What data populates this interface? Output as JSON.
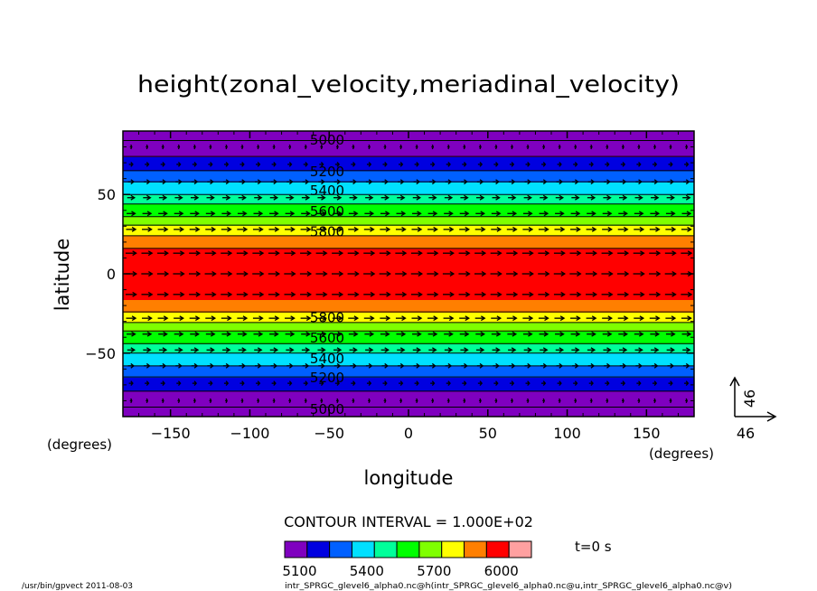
{
  "chart_data": {
    "type": "contour",
    "title": "height(zonal_velocity,meriadinal_velocity)",
    "xlabel": "longitude",
    "ylabel": "latitude",
    "xunit": "(degrees)",
    "yunit": "(degrees)",
    "xlim": [
      -180,
      180
    ],
    "ylim": [
      -90,
      90
    ],
    "xticks": [
      -150,
      -100,
      -50,
      0,
      50,
      100,
      150
    ],
    "yticks": [
      50,
      0,
      -50
    ],
    "contour_interval_text": "CONTOUR INTERVAL = 1.000E+02",
    "time_text": "t=0 s",
    "vector_reference": {
      "x_label": "46",
      "y_label": "46"
    },
    "colorbar": {
      "levels": [
        5000,
        5100,
        5200,
        5300,
        5400,
        5500,
        5600,
        5700,
        5800,
        5900,
        6000
      ],
      "colors": [
        "#7f00bf",
        "#0000e0",
        "#0060ff",
        "#00e0ff",
        "#00ff9a",
        "#00ff00",
        "#7fff00",
        "#ffff00",
        "#ff7f00",
        "#ff0000",
        "#ffa0a0"
      ],
      "tick_labels": [
        "5100",
        "5400",
        "5700",
        "6000"
      ],
      "tick_values": [
        5100,
        5400,
        5700,
        6000
      ]
    },
    "height_profile": {
      "lat": [
        -90,
        -84,
        -74,
        -65,
        -58,
        -50,
        -44,
        -36,
        -28,
        -16,
        16,
        28,
        36,
        44,
        50,
        58,
        65,
        74,
        84,
        90
      ],
      "height": [
        4950,
        5000,
        5100,
        5200,
        5300,
        5400,
        5500,
        5600,
        5750,
        5900,
        5900,
        5750,
        5600,
        5500,
        5400,
        5300,
        5200,
        5100,
        5000,
        4950
      ]
    },
    "contour_labels": [
      {
        "text": "5000",
        "lat": 85
      },
      {
        "text": "5200",
        "lat": 65
      },
      {
        "text": "5400",
        "lat": 53
      },
      {
        "text": "5600",
        "lat": 40
      },
      {
        "text": "5800",
        "lat": 27
      },
      {
        "text": "5800",
        "lat": -27
      },
      {
        "text": "5600",
        "lat": -40
      },
      {
        "text": "5400",
        "lat": -53
      },
      {
        "text": "5200",
        "lat": -65
      },
      {
        "text": "5000",
        "lat": -85
      }
    ],
    "vector_rows_lat": [
      80,
      69,
      58,
      48,
      38,
      28,
      13,
      0,
      -13,
      -28,
      -38,
      -48,
      -58,
      -69,
      -80
    ],
    "vector_cols_lon": [
      -175,
      -165,
      -155,
      -145,
      -135,
      -125,
      -115,
      -105,
      -95,
      -85,
      -75,
      -65,
      -55,
      -45,
      -35,
      -25,
      -15,
      -5,
      5,
      15,
      25,
      35,
      45,
      55,
      65,
      75,
      85,
      95,
      105,
      115,
      125,
      135,
      145,
      155,
      165,
      175
    ]
  },
  "footer": {
    "left": "/usr/bin/gpvect  2011-08-03",
    "right": "intr_SPRGC_glevel6_alpha0.nc@h(intr_SPRGC_glevel6_alpha0.nc@u,intr_SPRGC_glevel6_alpha0.nc@v)"
  }
}
